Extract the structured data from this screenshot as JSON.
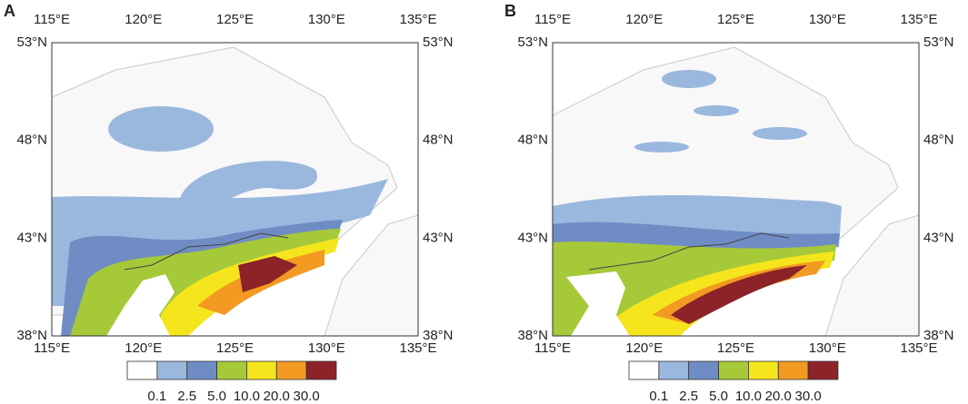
{
  "panels": [
    {
      "label": "A"
    },
    {
      "label": "B"
    }
  ],
  "lon_ticks": [
    "115°E",
    "120°E",
    "125°E",
    "130°E",
    "135°E"
  ],
  "lat_ticks": [
    "53°N",
    "48°N",
    "43°N",
    "38°N"
  ],
  "colorbar": {
    "labels": [
      "0.1",
      "2.5",
      "5.0",
      "10.0",
      "20.0",
      "30.0"
    ],
    "colors": [
      "#ffffff",
      "#9ab8de",
      "#6f8cc4",
      "#a6c93a",
      "#f5e51c",
      "#f29a22",
      "#8b2328"
    ]
  }
}
